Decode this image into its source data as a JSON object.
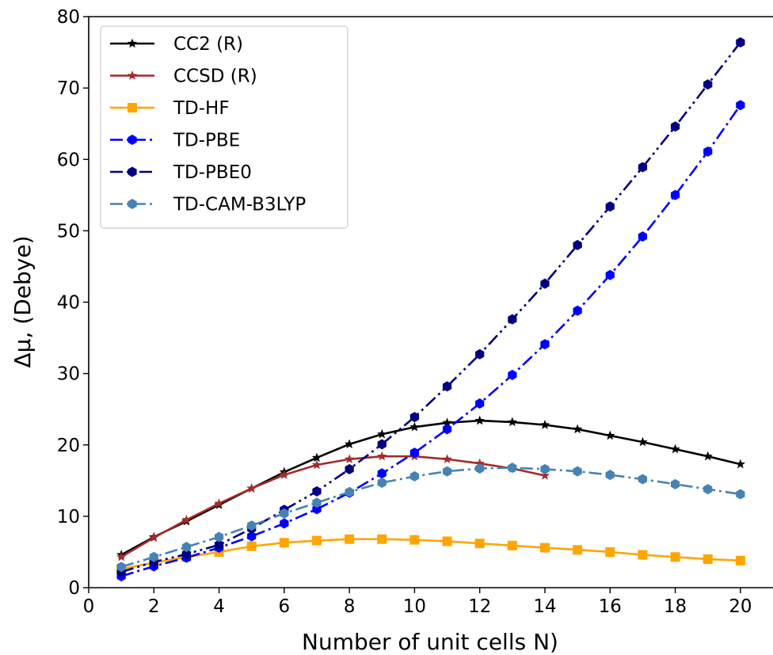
{
  "chart_data": {
    "type": "line",
    "xlabel": "Number of unit cells N)",
    "ylabel": "Δμ, (Debye)",
    "xlim": [
      0,
      21
    ],
    "ylim": [
      0,
      80
    ],
    "x_ticks": [
      0,
      2,
      4,
      6,
      8,
      10,
      12,
      14,
      16,
      18,
      20
    ],
    "y_ticks": [
      0,
      10,
      20,
      30,
      40,
      50,
      60,
      70,
      80
    ],
    "grid": false,
    "legend_position": "top-left",
    "series": [
      {
        "name": "CC2 (R)",
        "color": "#000000",
        "marker": "star",
        "linestyle": "solid",
        "x": [
          1,
          2,
          3,
          4,
          5,
          6,
          7,
          8,
          9,
          10,
          11,
          12,
          13,
          14,
          15,
          16,
          17,
          18,
          19,
          20
        ],
        "values": [
          4.6,
          7.1,
          9.3,
          11.6,
          13.9,
          16.2,
          18.2,
          20.1,
          21.5,
          22.5,
          23.1,
          23.4,
          23.2,
          22.8,
          22.2,
          21.3,
          20.4,
          19.4,
          18.4,
          17.3
        ]
      },
      {
        "name": "CCSD (R)",
        "color": "#a52a2a",
        "marker": "star",
        "linestyle": "solid",
        "x": [
          1,
          2,
          3,
          4,
          5,
          6,
          7,
          8,
          9,
          10,
          11,
          12,
          13,
          14
        ],
        "values": [
          4.3,
          7.0,
          9.5,
          11.8,
          13.9,
          15.8,
          17.2,
          18.0,
          18.4,
          18.4,
          18.0,
          17.4,
          16.7,
          15.7
        ]
      },
      {
        "name": "TD-HF",
        "color": "#ffa500",
        "marker": "square",
        "linestyle": "solid",
        "x": [
          1,
          2,
          3,
          4,
          5,
          6,
          7,
          8,
          9,
          10,
          11,
          12,
          13,
          14,
          15,
          16,
          17,
          18,
          19,
          20
        ],
        "values": [
          2.6,
          3.5,
          4.3,
          5.0,
          5.8,
          6.3,
          6.6,
          6.8,
          6.8,
          6.7,
          6.5,
          6.2,
          5.9,
          5.6,
          5.3,
          5.0,
          4.6,
          4.3,
          4.0,
          3.8
        ]
      },
      {
        "name": "TD-PBE",
        "color": "#0000ff",
        "marker": "hexagon",
        "linestyle": "dashdot",
        "x": [
          1,
          2,
          3,
          4,
          5,
          6,
          7,
          8,
          9,
          10,
          11,
          12,
          13,
          14,
          15,
          16,
          17,
          18,
          19,
          20
        ],
        "values": [
          1.6,
          3.0,
          4.2,
          5.6,
          7.2,
          9.0,
          11.0,
          13.3,
          16.0,
          18.9,
          22.2,
          25.8,
          29.8,
          34.1,
          38.8,
          43.8,
          49.2,
          55.0,
          61.1,
          67.6
        ]
      },
      {
        "name": "TD-PBE0",
        "color": "#000080",
        "marker": "hexagon",
        "linestyle": "dashdotdot",
        "x": [
          1,
          2,
          3,
          4,
          5,
          6,
          7,
          8,
          9,
          10,
          11,
          12,
          13,
          14,
          15,
          16,
          17,
          18,
          19,
          20
        ],
        "values": [
          2.2,
          3.6,
          4.7,
          6.0,
          8.3,
          10.9,
          13.5,
          16.6,
          20.1,
          23.9,
          28.2,
          32.7,
          37.6,
          42.6,
          48.0,
          53.4,
          58.9,
          64.6,
          70.5,
          76.4
        ]
      },
      {
        "name": "TD-CAM-B3LYP",
        "color": "#4682b4",
        "marker": "hexagon",
        "linestyle": "dashdot",
        "x": [
          1,
          2,
          3,
          4,
          5,
          6,
          7,
          8,
          9,
          10,
          11,
          12,
          13,
          14,
          15,
          16,
          17,
          18,
          19,
          20
        ],
        "values": [
          2.9,
          4.3,
          5.7,
          7.1,
          8.7,
          10.4,
          11.9,
          13.4,
          14.7,
          15.6,
          16.3,
          16.7,
          16.8,
          16.6,
          16.3,
          15.8,
          15.2,
          14.5,
          13.8,
          13.1
        ]
      }
    ]
  }
}
